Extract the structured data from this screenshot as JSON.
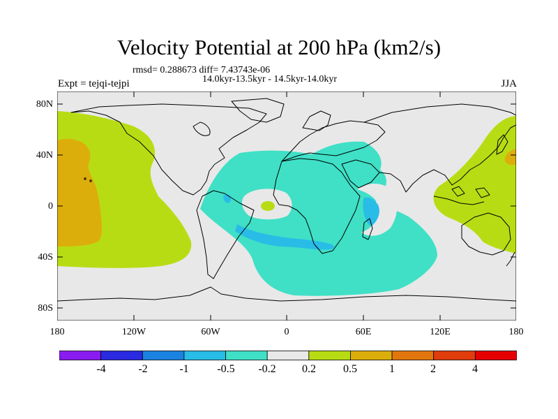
{
  "title": "Velocity Potential at 200 hPa (km2/s)",
  "stats_line": "rmsd= 0.288673 diff= 7.43743e-06",
  "period_line": "14.0kyr-13.5kyr - 14.5kyr-14.0kyr",
  "experiment": "Expt = tejqi-tejpi",
  "season": "JJA",
  "lat_ticks": [
    "80N",
    "40N",
    "0",
    "40S",
    "80S"
  ],
  "lon_ticks": [
    "180",
    "120W",
    "60W",
    "0",
    "60E",
    "120E",
    "180"
  ],
  "colorbar": {
    "labels": [
      "-4",
      "-2",
      "-1",
      "-0.5",
      "-0.2",
      "0.2",
      "0.5",
      "1",
      "2",
      "4"
    ],
    "colors": [
      "#8a1cf0",
      "#2a2ae0",
      "#1a82e0",
      "#28bce6",
      "#3fe0c6",
      "#e8e8e8",
      "#b8dc14",
      "#dcae0c",
      "#e2760e",
      "#e03c0c",
      "#e60000"
    ]
  },
  "field_colors": {
    "neutral": "#e8e8e8",
    "positive_weak": "#b8dc14",
    "positive_mid": "#dcae0c",
    "negative_weak": "#3fe0c6",
    "negative_mid": "#28bce6"
  }
}
